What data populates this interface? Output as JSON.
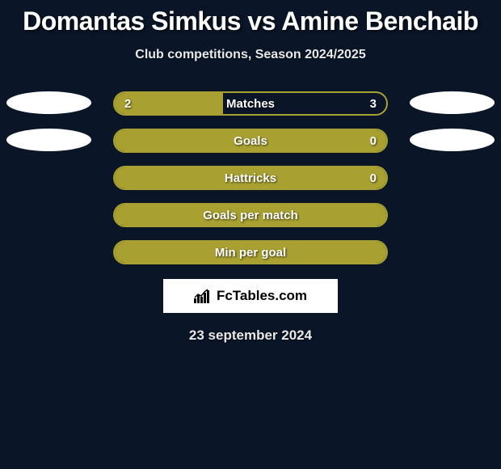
{
  "title": "Domantas Simkus vs Amine Benchaib",
  "subtitle": "Club competitions, Season 2024/2025",
  "colors": {
    "background": "#0a1628",
    "bar_fill": "#a8a030",
    "bar_border": "#a8a030",
    "bar_empty": "rgba(0,0,0,0)",
    "text": "#ffffff",
    "avatar": "#ffffff"
  },
  "stats": [
    {
      "label": "Matches",
      "left_value": "2",
      "right_value": "3",
      "left_pct": 40,
      "right_pct": 60,
      "show_left_avatar": true,
      "show_right_avatar": true,
      "show_values": true
    },
    {
      "label": "Goals",
      "left_value": "",
      "right_value": "0",
      "left_pct": 100,
      "right_pct": 0,
      "show_left_avatar": true,
      "show_right_avatar": true,
      "show_values": true
    },
    {
      "label": "Hattricks",
      "left_value": "",
      "right_value": "0",
      "left_pct": 100,
      "right_pct": 0,
      "show_left_avatar": false,
      "show_right_avatar": false,
      "show_values": true
    },
    {
      "label": "Goals per match",
      "left_value": "",
      "right_value": "",
      "left_pct": 100,
      "right_pct": 0,
      "show_left_avatar": false,
      "show_right_avatar": false,
      "show_values": false
    },
    {
      "label": "Min per goal",
      "left_value": "",
      "right_value": "",
      "left_pct": 100,
      "right_pct": 0,
      "show_left_avatar": false,
      "show_right_avatar": false,
      "show_values": false
    }
  ],
  "footer": {
    "logo_text": "FcTables.com",
    "date": "23 september 2024"
  }
}
